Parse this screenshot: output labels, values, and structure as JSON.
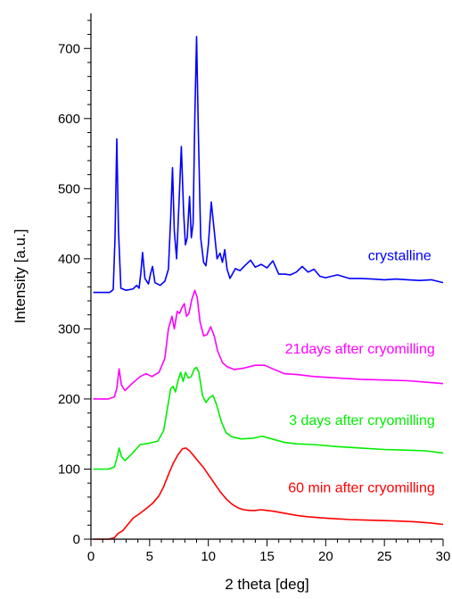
{
  "chart_data": {
    "type": "line",
    "xlabel": "2 theta [deg]",
    "ylabel": "Intensity [a.u.]",
    "xlim": [
      0,
      30
    ],
    "ylim": [
      0,
      750
    ],
    "x_ticks": [
      0,
      5,
      10,
      15,
      20,
      25,
      30
    ],
    "x_tick_labels": [
      "0",
      "5",
      "10",
      "15",
      "20",
      "25",
      "30"
    ],
    "y_ticks": [
      0,
      100,
      200,
      300,
      400,
      500,
      600,
      700
    ],
    "y_tick_labels": [
      "0",
      "100",
      "200",
      "300",
      "400",
      "500",
      "600",
      "700"
    ],
    "grid": false,
    "series": [
      {
        "name": "crystalline",
        "color": "#0000ff",
        "points": [
          [
            0.2,
            352
          ],
          [
            1.6,
            352
          ],
          [
            1.9,
            356
          ],
          [
            2.05,
            430
          ],
          [
            2.2,
            571
          ],
          [
            2.35,
            440
          ],
          [
            2.55,
            358
          ],
          [
            3.0,
            355
          ],
          [
            3.6,
            357
          ],
          [
            3.9,
            362
          ],
          [
            4.1,
            358
          ],
          [
            4.25,
            380
          ],
          [
            4.4,
            409
          ],
          [
            4.6,
            372
          ],
          [
            4.9,
            364
          ],
          [
            5.1,
            380
          ],
          [
            5.25,
            389
          ],
          [
            5.45,
            366
          ],
          [
            5.9,
            362
          ],
          [
            6.3,
            368
          ],
          [
            6.6,
            385
          ],
          [
            6.8,
            460
          ],
          [
            6.95,
            530
          ],
          [
            7.1,
            440
          ],
          [
            7.3,
            400
          ],
          [
            7.5,
            480
          ],
          [
            7.7,
            560
          ],
          [
            7.9,
            465
          ],
          [
            8.05,
            420
          ],
          [
            8.2,
            430
          ],
          [
            8.4,
            489
          ],
          [
            8.55,
            430
          ],
          [
            8.7,
            450
          ],
          [
            8.85,
            600
          ],
          [
            9.0,
            717
          ],
          [
            9.15,
            580
          ],
          [
            9.35,
            430
          ],
          [
            9.6,
            395
          ],
          [
            9.8,
            390
          ],
          [
            10.0,
            420
          ],
          [
            10.25,
            481
          ],
          [
            10.5,
            440
          ],
          [
            10.75,
            400
          ],
          [
            11.0,
            408
          ],
          [
            11.2,
            395
          ],
          [
            11.4,
            413
          ],
          [
            11.6,
            385
          ],
          [
            11.85,
            372
          ],
          [
            12.3,
            386
          ],
          [
            12.7,
            383
          ],
          [
            13.1,
            390
          ],
          [
            13.6,
            398
          ],
          [
            14.0,
            388
          ],
          [
            14.5,
            392
          ],
          [
            15.0,
            387
          ],
          [
            15.5,
            397
          ],
          [
            16.0,
            378
          ],
          [
            16.5,
            378
          ],
          [
            17.0,
            377
          ],
          [
            17.5,
            381
          ],
          [
            18.0,
            389
          ],
          [
            18.5,
            381
          ],
          [
            19.0,
            385
          ],
          [
            19.5,
            375
          ],
          [
            20.0,
            373
          ],
          [
            21.0,
            377
          ],
          [
            22.0,
            372
          ],
          [
            23.0,
            372
          ],
          [
            24.0,
            371
          ],
          [
            25.0,
            370
          ],
          [
            26.0,
            371
          ],
          [
            27.0,
            370
          ],
          [
            28.0,
            369
          ],
          [
            29.0,
            370
          ],
          [
            30.0,
            366
          ]
        ]
      },
      {
        "name": "21days after cryomilling",
        "color": "#ff00ff",
        "points": [
          [
            0.2,
            200
          ],
          [
            1.5,
            200
          ],
          [
            2.0,
            203
          ],
          [
            2.2,
            215
          ],
          [
            2.4,
            243
          ],
          [
            2.6,
            220
          ],
          [
            2.9,
            212
          ],
          [
            3.5,
            222
          ],
          [
            4.2,
            232
          ],
          [
            4.7,
            236
          ],
          [
            5.2,
            232
          ],
          [
            5.8,
            238
          ],
          [
            6.3,
            258
          ],
          [
            6.6,
            300
          ],
          [
            6.9,
            318
          ],
          [
            7.1,
            300
          ],
          [
            7.35,
            325
          ],
          [
            7.55,
            322
          ],
          [
            7.75,
            330
          ],
          [
            7.95,
            336
          ],
          [
            8.15,
            318
          ],
          [
            8.35,
            322
          ],
          [
            8.6,
            342
          ],
          [
            8.85,
            355
          ],
          [
            9.05,
            345
          ],
          [
            9.3,
            310
          ],
          [
            9.6,
            290
          ],
          [
            9.9,
            292
          ],
          [
            10.2,
            303
          ],
          [
            10.5,
            290
          ],
          [
            10.8,
            268
          ],
          [
            11.2,
            252
          ],
          [
            11.6,
            246
          ],
          [
            12.2,
            242
          ],
          [
            13.0,
            244
          ],
          [
            14.0,
            248
          ],
          [
            14.8,
            248
          ],
          [
            15.5,
            243
          ],
          [
            16.5,
            236
          ],
          [
            17.5,
            235
          ],
          [
            19.0,
            232
          ],
          [
            21.0,
            230
          ],
          [
            23.0,
            228
          ],
          [
            25.0,
            227
          ],
          [
            27.0,
            226
          ],
          [
            28.5,
            224
          ],
          [
            30.0,
            222
          ]
        ]
      },
      {
        "name": "3 days after cryomilling",
        "color": "#00ee00",
        "points": [
          [
            0.2,
            100
          ],
          [
            1.5,
            100
          ],
          [
            2.0,
            103
          ],
          [
            2.2,
            115
          ],
          [
            2.4,
            130
          ],
          [
            2.6,
            118
          ],
          [
            2.9,
            112
          ],
          [
            3.5,
            122
          ],
          [
            4.2,
            135
          ],
          [
            5.0,
            137
          ],
          [
            5.7,
            140
          ],
          [
            6.2,
            155
          ],
          [
            6.5,
            185
          ],
          [
            6.8,
            215
          ],
          [
            7.0,
            218
          ],
          [
            7.2,
            210
          ],
          [
            7.45,
            228
          ],
          [
            7.65,
            238
          ],
          [
            7.85,
            225
          ],
          [
            8.05,
            238
          ],
          [
            8.3,
            230
          ],
          [
            8.55,
            232
          ],
          [
            8.8,
            243
          ],
          [
            9.0,
            245
          ],
          [
            9.2,
            238
          ],
          [
            9.5,
            205
          ],
          [
            9.8,
            195
          ],
          [
            10.1,
            202
          ],
          [
            10.4,
            205
          ],
          [
            10.7,
            192
          ],
          [
            11.1,
            168
          ],
          [
            11.5,
            152
          ],
          [
            12.0,
            146
          ],
          [
            12.8,
            143
          ],
          [
            13.8,
            144
          ],
          [
            14.6,
            147
          ],
          [
            15.4,
            143
          ],
          [
            16.5,
            138
          ],
          [
            17.5,
            136
          ],
          [
            19.0,
            135
          ],
          [
            21.0,
            132
          ],
          [
            23.0,
            130
          ],
          [
            25.0,
            128
          ],
          [
            27.0,
            127
          ],
          [
            28.5,
            126
          ],
          [
            30.0,
            123
          ]
        ]
      },
      {
        "name": "60 min after cryomilling",
        "color": "#ff0000",
        "points": [
          [
            0.2,
            0
          ],
          [
            1.5,
            0
          ],
          [
            2.0,
            2
          ],
          [
            2.3,
            8
          ],
          [
            2.7,
            12
          ],
          [
            3.1,
            20
          ],
          [
            3.6,
            30
          ],
          [
            4.2,
            37
          ],
          [
            4.8,
            45
          ],
          [
            5.3,
            52
          ],
          [
            5.8,
            62
          ],
          [
            6.2,
            75
          ],
          [
            6.6,
            92
          ],
          [
            7.0,
            108
          ],
          [
            7.4,
            120
          ],
          [
            7.8,
            129
          ],
          [
            8.1,
            130
          ],
          [
            8.4,
            126
          ],
          [
            8.8,
            118
          ],
          [
            9.2,
            110
          ],
          [
            9.6,
            102
          ],
          [
            10.0,
            92
          ],
          [
            10.5,
            80
          ],
          [
            11.0,
            68
          ],
          [
            11.5,
            58
          ],
          [
            12.0,
            50
          ],
          [
            12.5,
            45
          ],
          [
            13.0,
            42
          ],
          [
            13.5,
            41
          ],
          [
            14.0,
            41
          ],
          [
            14.5,
            42
          ],
          [
            15.0,
            41
          ],
          [
            15.5,
            40
          ],
          [
            16.5,
            37
          ],
          [
            17.5,
            34
          ],
          [
            18.5,
            32
          ],
          [
            20.0,
            30
          ],
          [
            22.0,
            28
          ],
          [
            24.0,
            27
          ],
          [
            26.0,
            26
          ],
          [
            27.5,
            25
          ],
          [
            29.0,
            23
          ],
          [
            30.0,
            21
          ]
        ]
      }
    ],
    "annotations": [
      {
        "text": "crystalline",
        "x": 29.0,
        "y": 398,
        "anchor": "end",
        "color": "#0000ff"
      },
      {
        "text": "21days after cryomilling",
        "x": 29.3,
        "y": 265,
        "anchor": "end",
        "color": "#ff00ff"
      },
      {
        "text": "3 days after cryomilling",
        "x": 29.3,
        "y": 163,
        "anchor": "end",
        "color": "#00ee00"
      },
      {
        "text": "60 min after cryomilling",
        "x": 29.3,
        "y": 67,
        "anchor": "end",
        "color": "#ff0000"
      }
    ]
  }
}
